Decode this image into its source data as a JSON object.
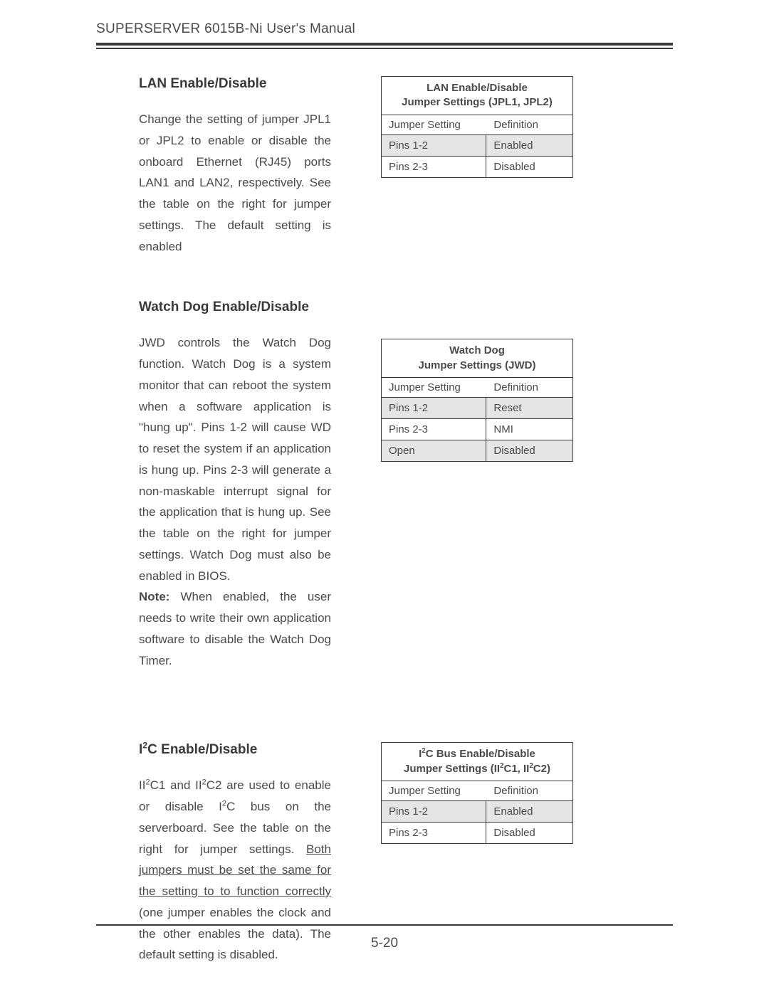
{
  "header": {
    "text": "SUPERSERVER 6015B-Ni User's Manual"
  },
  "pageNumber": "5-20",
  "sections": [
    {
      "title": "LAN Enable/Disable",
      "body": "Change the setting of jumper JPL1 or JPL2 to enable or disable the onboard Ethernet (RJ45) ports LAN1 and LAN2, respectively.  See the table on the right for jumper settings.  The default setting is enabled",
      "table": {
        "title_line1": "LAN Enable/Disable",
        "title_line2": "Jumper Settings (JPL1, JPL2)",
        "col1": "Jumper Setting",
        "col2": "Definition",
        "rows": [
          {
            "c1": "Pins 1-2",
            "c2": "Enabled",
            "shade": true
          },
          {
            "c1": "Pins 2-3",
            "c2": "Disabled",
            "shade": false
          }
        ]
      }
    },
    {
      "title": "Watch Dog Enable/Disable",
      "body_main": "JWD controls the Watch Dog function.  Watch Dog is a system monitor that can reboot the system when a software application is \"hung up\".  Pins 1-2 will cause WD to  reset the system if an application is hung up.  Pins 2-3 will generate a non-maskable interrupt signal for the application that is hung up.  See the table on the right for jumper settings.  Watch Dog must also be enabled in BIOS.",
      "note_label": "Note:",
      "note_text": " When enabled, the user needs to write their own application software to disable the Watch Dog Timer.",
      "table": {
        "title_line1": "Watch Dog",
        "title_line2": "Jumper Settings (JWD)",
        "col1": "Jumper Setting",
        "col2": "Definition",
        "rows": [
          {
            "c1": "Pins 1-2",
            "c2": "Reset",
            "shade": true
          },
          {
            "c1": "Pins 2-3",
            "c2": "NMI",
            "shade": false
          },
          {
            "c1": "Open",
            "c2": "Disabled",
            "shade": true
          }
        ]
      }
    },
    {
      "title_html": "I<sup>2</sup>C Enable/Disable",
      "body_html": "II<sup>2</sup>C1 and II<sup>2</sup>C2 are used to enable or disable I<sup>2</sup>C bus on the serverboard. See the table on the right for jumper settings.  <span class=\"underline\">Both jumpers must be set the same for the setting to to function correctly</span> (one jumper enables the clock and the other enables the data). The default setting is disabled.",
      "table": {
        "title_line1_html": "I<sup>2</sup>C Bus Enable/Disable",
        "title_line2_html": "Jumper Settings (II<sup>2</sup>C1, II<sup>2</sup>C2)",
        "col1": "Jumper Setting",
        "col2": "Definition",
        "rows": [
          {
            "c1": "Pins 1-2",
            "c2": "Enabled",
            "shade": true
          },
          {
            "c1": "Pins 2-3",
            "c2": "Disabled",
            "shade": false
          }
        ]
      }
    }
  ]
}
